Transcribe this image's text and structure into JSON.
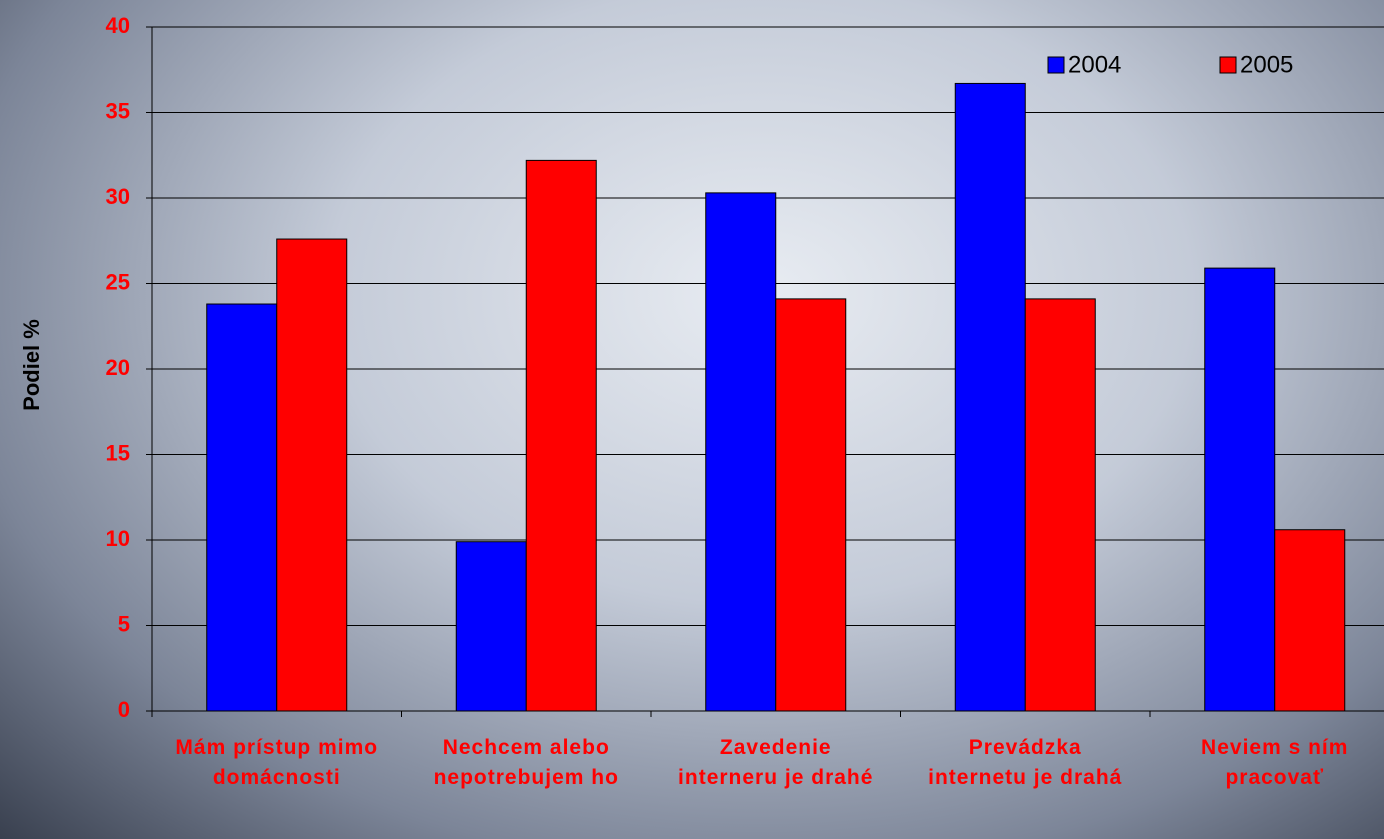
{
  "chart_data": {
    "type": "bar",
    "y_label": "Podiel %",
    "categories": [
      "Mám prístup mimo domácnosti",
      "Nechcem alebo nepotrebujem ho",
      "Zavedenie interneru je drahé",
      "Prevádzka internetu je drahá",
      "Neviem s ním pracovať"
    ],
    "series": [
      {
        "name": "2004",
        "color": "#0000ff",
        "values": [
          23.8,
          9.9,
          30.3,
          36.7,
          25.9
        ]
      },
      {
        "name": "2005",
        "color": "#ff0000",
        "values": [
          27.6,
          32.2,
          24.1,
          24.1,
          10.6
        ]
      }
    ],
    "ylim": [
      0,
      40
    ],
    "yticks": [
      0,
      5,
      10,
      15,
      20,
      25,
      30,
      35,
      40
    ],
    "grid": true,
    "legend": "top-right"
  }
}
